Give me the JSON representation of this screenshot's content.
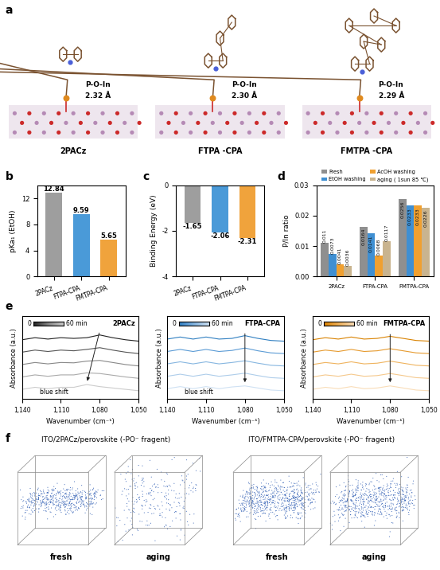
{
  "figure": {
    "a": {
      "panel_label": "a",
      "structures": [
        {
          "name": "2PACz",
          "bond": "P-O-In",
          "length": "2.32 Å"
        },
        {
          "name": "FTPA -CPA",
          "bond": "P-O-In",
          "length": "2.30 Å"
        },
        {
          "name": "FMTPA -CPA",
          "bond": "P-O-In",
          "length": "2.29 Å"
        }
      ]
    },
    "f": {
      "panel_label": "f",
      "maps": [
        {
          "title": "ITO/2PACz/perovskite (-PO⁻ fragent)",
          "samples": [
            "fresh",
            "aging"
          ]
        },
        {
          "title": "ITO/FMTPA-CPA/perovskite (-PO⁻ fragent)",
          "samples": [
            "fresh",
            "aging"
          ]
        }
      ]
    }
  },
  "chart_data": [
    {
      "panel_label": "b",
      "type": "bar",
      "categories": [
        "2PACz",
        "FTPA-CPA",
        "FMTPA-CPA"
      ],
      "values": [
        12.84,
        9.59,
        5.65
      ],
      "colors": [
        "#9e9e9e",
        "#4a9ad8",
        "#f0a33c"
      ],
      "y_label": "pKa₁ (EtOH)",
      "ylim": [
        0,
        14
      ],
      "yticks": [
        0,
        4,
        8,
        12
      ],
      "data_labels": true
    },
    {
      "panel_label": "c",
      "type": "bar",
      "categories": [
        "2PACz",
        "FTPA-CPA",
        "FMTPA-CPA"
      ],
      "values": [
        -1.65,
        -2.06,
        -2.31
      ],
      "colors": [
        "#9e9e9e",
        "#4a9ad8",
        "#f0a33c"
      ],
      "y_label": "Binding Energy (eV)",
      "ylim": [
        -4,
        0
      ],
      "yticks": [
        -4,
        -2,
        0
      ],
      "data_labels": true
    },
    {
      "panel_label": "d",
      "type": "bar",
      "categories": [
        "2PACz",
        "FTPA-CPA",
        "FMTPA-CPA"
      ],
      "series": [
        {
          "name": "Fresh",
          "color": "#8f8f8f",
          "values": [
            0.011,
            0.0164,
            0.0256
          ]
        },
        {
          "name": "EtOH washing",
          "color": "#3f8fd2",
          "values": [
            0.0073,
            0.0141,
            0.0233
          ]
        },
        {
          "name": "AcOH washing",
          "color": "#f0a030",
          "values": [
            0.0041,
            0.0068,
            0.0233
          ]
        },
        {
          "name": "aging ( 1sun 85 ℃)",
          "color": "#c9b48f",
          "values": [
            0.0036,
            0.0117,
            0.0226
          ]
        }
      ],
      "y_label": "P/In ratio",
      "ylim": [
        0,
        0.03
      ],
      "yticks": [
        {
          "value": 0,
          "label": "0.00"
        },
        0.01,
        0.02,
        0.03
      ],
      "data_labels": true,
      "legend": "top"
    },
    {
      "panel_label": "e",
      "type": "line",
      "title": "2PACz",
      "x": [
        1140,
        1130,
        1120,
        1110,
        1100,
        1090,
        1080,
        1070,
        1060,
        1050
      ],
      "series": [
        {
          "color": "#222222",
          "values": [
            8.6,
            8.9,
            8.7,
            8.9,
            8.8,
            8.9,
            9.3,
            8.9,
            8.6,
            8.4
          ]
        },
        {
          "color": "#555555",
          "values": [
            6.8,
            7.1,
            6.9,
            7.1,
            7.0,
            7.2,
            7.45,
            7.1,
            6.8,
            6.6
          ]
        },
        {
          "color": "#888888",
          "values": [
            5.0,
            5.3,
            5.1,
            5.3,
            5.25,
            5.5,
            5.6,
            5.3,
            5.0,
            4.8
          ]
        },
        {
          "color": "#aaaaaa",
          "values": [
            3.2,
            3.5,
            3.3,
            3.5,
            3.5,
            3.8,
            3.7,
            3.45,
            3.2,
            3.0
          ]
        },
        {
          "color": "#cccccc",
          "values": [
            1.4,
            1.7,
            1.5,
            1.7,
            1.7,
            2.1,
            1.8,
            1.6,
            1.4,
            1.2
          ]
        }
      ],
      "x_label": "Wavenumber (cm⁻¹)",
      "y_label": "Absorbance (a.u.)",
      "xlim": [
        1140,
        1050
      ],
      "xticks": [
        {
          "value": 1140,
          "label": "1,140"
        },
        {
          "value": 1110,
          "label": "1,110"
        },
        {
          "value": 1080,
          "label": "1,080"
        },
        {
          "value": 1050,
          "label": "1,050"
        }
      ],
      "ylim": [
        0,
        12
      ],
      "tick_labels": "x",
      "gradient_labels": [
        "0",
        "60 min"
      ],
      "annotation": "blue shift"
    },
    {
      "type": "line",
      "title": "FTPA-CPA",
      "x": [
        1140,
        1130,
        1120,
        1110,
        1100,
        1090,
        1080,
        1070,
        1060,
        1050
      ],
      "series": [
        {
          "color": "#2f7fc1",
          "values": [
            8.7,
            9.0,
            8.7,
            9.0,
            8.7,
            8.8,
            9.2,
            8.8,
            8.5,
            8.4
          ]
        },
        {
          "color": "#5b9bd5",
          "values": [
            6.9,
            7.2,
            6.9,
            7.2,
            6.9,
            7.05,
            7.4,
            7.0,
            6.7,
            6.6
          ]
        },
        {
          "color": "#86b6e0",
          "values": [
            5.1,
            5.4,
            5.1,
            5.4,
            5.1,
            5.3,
            5.55,
            5.2,
            4.9,
            4.8
          ]
        },
        {
          "color": "#aecdea",
          "values": [
            3.3,
            3.6,
            3.3,
            3.6,
            3.3,
            3.5,
            3.75,
            3.4,
            3.1,
            3.0
          ]
        },
        {
          "color": "#cfe1f3",
          "values": [
            1.5,
            1.8,
            1.5,
            1.8,
            1.5,
            1.75,
            1.9,
            1.6,
            1.3,
            1.2
          ]
        }
      ],
      "x_label": "Wavenumber (cm⁻¹)",
      "y_label": "Absorbance (a.u.)",
      "xlim": [
        1140,
        1050
      ],
      "xticks": [
        {
          "value": 1140,
          "label": "1,140"
        },
        {
          "value": 1110,
          "label": "1,110"
        },
        {
          "value": 1080,
          "label": "1,080"
        },
        {
          "value": 1050,
          "label": "1,050"
        }
      ],
      "ylim": [
        0,
        12
      ],
      "tick_labels": "x",
      "gradient_labels": [
        "0",
        "60 min"
      ],
      "annotation": "blue shift"
    },
    {
      "type": "line",
      "title": "FMTPA-CPA",
      "x": [
        1140,
        1130,
        1120,
        1110,
        1100,
        1090,
        1080,
        1070,
        1060,
        1050
      ],
      "series": [
        {
          "color": "#d98200",
          "values": [
            8.6,
            8.9,
            8.7,
            9.0,
            8.7,
            8.8,
            9.1,
            8.8,
            8.5,
            8.4
          ]
        },
        {
          "color": "#e69a2e",
          "values": [
            6.8,
            7.1,
            6.9,
            7.2,
            6.9,
            7.0,
            7.3,
            7.0,
            6.7,
            6.6
          ]
        },
        {
          "color": "#efb35e",
          "values": [
            5.0,
            5.3,
            5.1,
            5.4,
            5.1,
            5.2,
            5.5,
            5.2,
            4.9,
            4.8
          ]
        },
        {
          "color": "#f5c98d",
          "values": [
            3.2,
            3.5,
            3.3,
            3.6,
            3.3,
            3.4,
            3.7,
            3.4,
            3.1,
            3.0
          ]
        },
        {
          "color": "#f9ddb8",
          "values": [
            1.4,
            1.7,
            1.5,
            1.8,
            1.5,
            1.6,
            1.9,
            1.6,
            1.3,
            1.2
          ]
        }
      ],
      "x_label": "Wavenumber (cm⁻¹)",
      "y_label": "Absorbance (a.u.)",
      "xlim": [
        1140,
        1050
      ],
      "xticks": [
        {
          "value": 1140,
          "label": "1,140"
        },
        {
          "value": 1110,
          "label": "1,110"
        },
        {
          "value": 1080,
          "label": "1,080"
        },
        {
          "value": 1050,
          "label": "1,050"
        }
      ],
      "ylim": [
        0,
        12
      ],
      "tick_labels": "x",
      "gradient_labels": [
        "0",
        "60 min"
      ]
    }
  ]
}
